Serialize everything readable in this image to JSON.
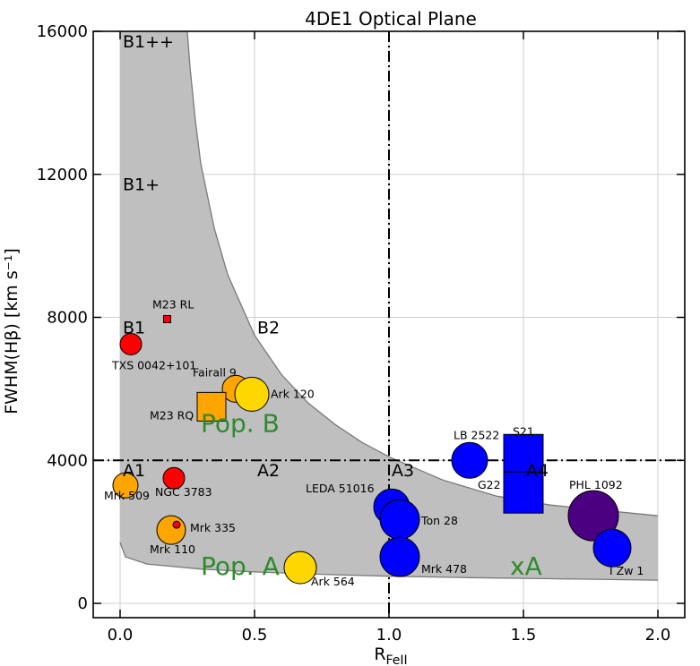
{
  "chart_data": {
    "type": "scatter",
    "title": "4DE1 Optical Plane",
    "xlabel_main": "R",
    "xlabel_sub": "FeII",
    "ylabel": "FWHM(Hβ) [km s⁻¹]",
    "xlim": [
      -0.1,
      2.1
    ],
    "ylim": [
      -400,
      16000
    ],
    "xticks": [
      0.0,
      0.5,
      1.0,
      1.5,
      2.0
    ],
    "xtick_labels": [
      "0.0",
      "0.5",
      "1.0",
      "1.5",
      "2.0"
    ],
    "yticks": [
      0,
      4000,
      8000,
      12000,
      16000
    ],
    "ytick_labels": [
      "0",
      "4000",
      "8000",
      "12000",
      "16000"
    ],
    "grid": true,
    "boundaries": {
      "x": 1.0,
      "y": 4000,
      "style": "dash-dot"
    },
    "shaded_region": {
      "color": "#bfbfbf",
      "upper_curve": [
        [
          0.0,
          16000
        ],
        [
          0.25,
          16000
        ],
        [
          0.26,
          15000
        ],
        [
          0.28,
          13500
        ],
        [
          0.3,
          12300
        ],
        [
          0.35,
          10500
        ],
        [
          0.4,
          9200
        ],
        [
          0.5,
          7500
        ],
        [
          0.6,
          6400
        ],
        [
          0.7,
          5600
        ],
        [
          0.8,
          5000
        ],
        [
          0.9,
          4500
        ],
        [
          1.0,
          4100
        ],
        [
          1.2,
          3450
        ],
        [
          1.4,
          3000
        ],
        [
          1.6,
          2750
        ],
        [
          1.8,
          2600
        ],
        [
          2.0,
          2450
        ]
      ],
      "lower_curve": [
        [
          0.0,
          1700
        ],
        [
          0.02,
          1300
        ],
        [
          0.1,
          1100
        ],
        [
          0.3,
          960
        ],
        [
          0.5,
          880
        ],
        [
          0.8,
          800
        ],
        [
          1.0,
          760
        ],
        [
          1.3,
          720
        ],
        [
          1.6,
          690
        ],
        [
          2.0,
          650
        ]
      ]
    },
    "region_labels": [
      {
        "text": "B1++",
        "x": 0.01,
        "y": 15550
      },
      {
        "text": "B1+",
        "x": 0.01,
        "y": 11550
      },
      {
        "text": "B1",
        "x": 0.01,
        "y": 7550
      },
      {
        "text": "B2",
        "x": 0.51,
        "y": 7550
      },
      {
        "text": "A1",
        "x": 0.01,
        "y": 3550
      },
      {
        "text": "A2",
        "x": 0.51,
        "y": 3550
      },
      {
        "text": "A3",
        "x": 1.01,
        "y": 3550
      },
      {
        "text": "A4",
        "x": 1.51,
        "y": 3550
      }
    ],
    "population_labels": [
      {
        "text": "Pop. B",
        "x": 0.3,
        "y": 4800
      },
      {
        "text": "Pop. A",
        "x": 0.3,
        "y": 800
      },
      {
        "text": "xA",
        "x": 1.45,
        "y": 800
      }
    ],
    "points": [
      {
        "name": "M23 RL",
        "x": 0.175,
        "y": 7950,
        "marker": "square",
        "size": 8,
        "color": "#ff0000",
        "lx": 0.12,
        "ly": 8250
      },
      {
        "name": "TXS 0042+101",
        "x": 0.04,
        "y": 7250,
        "marker": "circle",
        "size": 12,
        "color": "#ff0000",
        "lx": -0.03,
        "ly": 6550
      },
      {
        "name": "Fairall 9",
        "x": 0.43,
        "y": 6000,
        "marker": "circle",
        "size": 15,
        "color": "#ffa500",
        "lx": 0.27,
        "ly": 6350
      },
      {
        "name": "Ark 120",
        "x": 0.49,
        "y": 5850,
        "marker": "circle",
        "size": 19,
        "color": "#ffd700",
        "lx": 0.56,
        "ly": 5750
      },
      {
        "name": "M23 RQ",
        "x": 0.34,
        "y": 5500,
        "marker": "square",
        "size": 32,
        "color": "#ffa500",
        "lx": 0.11,
        "ly": 5150
      },
      {
        "name": "Mrk 509",
        "x": 0.02,
        "y": 3300,
        "marker": "circle",
        "size": 14,
        "color": "#ffa500",
        "lx": -0.06,
        "ly": 2900
      },
      {
        "name": "NGC 3783",
        "x": 0.2,
        "y": 3500,
        "marker": "circle",
        "size": 12,
        "color": "#ff0000",
        "lx": 0.13,
        "ly": 3000
      },
      {
        "name": "Mrk 335",
        "x": 0.19,
        "y": 2050,
        "marker": "circle",
        "size": 16,
        "color": "#ffa500",
        "lx": 0.26,
        "ly": 2000
      },
      {
        "name": "Mrk 335 core",
        "x": 0.21,
        "y": 2200,
        "marker": "circle",
        "size": 4,
        "color": "#ff0000",
        "lx": null,
        "ly": null
      },
      {
        "name": "Mrk 110",
        "x": 0.19,
        "y": 2050,
        "marker": "none",
        "size": 0,
        "color": "#ffa500",
        "lx": 0.11,
        "ly": 1400
      },
      {
        "name": "Ark 564",
        "x": 0.67,
        "y": 1000,
        "marker": "circle",
        "size": 18,
        "color": "#ffd700",
        "lx": 0.71,
        "ly": 500
      },
      {
        "name": "LEDA 51016",
        "x": 1.01,
        "y": 2700,
        "marker": "circle",
        "size": 20,
        "color": "#0000ff",
        "lx": 0.69,
        "ly": 3100
      },
      {
        "name": "Ton 28",
        "x": 1.04,
        "y": 2350,
        "marker": "circle",
        "size": 22,
        "color": "#0000ff",
        "lx": 1.12,
        "ly": 2200
      },
      {
        "name": "Mrk 478",
        "x": 1.04,
        "y": 1300,
        "marker": "circle",
        "size": 22,
        "color": "#0000ff",
        "lx": 1.12,
        "ly": 850
      },
      {
        "name": "LB 2522",
        "x": 1.3,
        "y": 4000,
        "marker": "circle",
        "size": 20,
        "color": "#0000ff",
        "lx": 1.24,
        "ly": 4600
      },
      {
        "name": "S21",
        "x": 1.5,
        "y": 4100,
        "marker": "rect",
        "w": 44,
        "h": 50,
        "color": "#0000ff",
        "lx": 1.46,
        "ly": 4700
      },
      {
        "name": "G22",
        "x": 1.5,
        "y": 3100,
        "marker": "rect",
        "w": 44,
        "h": 46,
        "color": "#0000ff",
        "lx": 1.33,
        "ly": 3200
      },
      {
        "name": "PHL 1092",
        "x": 1.76,
        "y": 2450,
        "marker": "circle",
        "size": 28,
        "color": "#4b0082",
        "lx": 1.67,
        "ly": 3200
      },
      {
        "name": "I Zw 1",
        "x": 1.83,
        "y": 1550,
        "marker": "circle",
        "size": 21,
        "color": "#0000ff",
        "lx": 1.82,
        "ly": 800
      }
    ]
  }
}
